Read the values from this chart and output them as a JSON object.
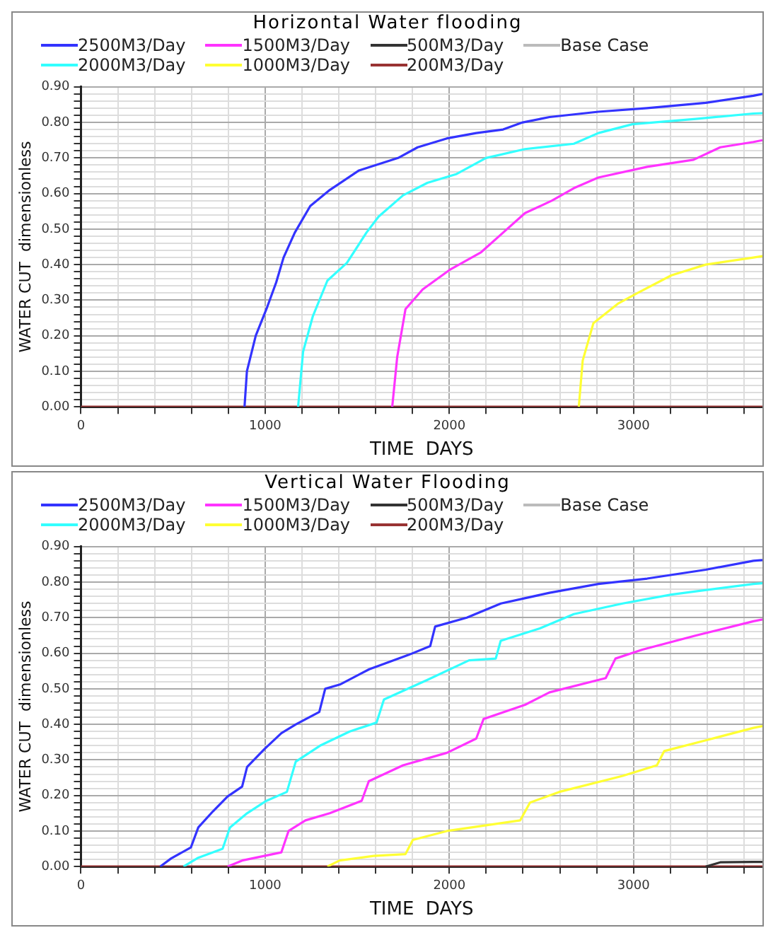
{
  "chart_data": [
    {
      "type": "line",
      "title": "Horizontal Water flooding",
      "xlabel": "TIME  DAYS",
      "ylabel": "WATER CUT  dimensionless",
      "legend": "top",
      "grid": true,
      "marker": "none",
      "xlim": [
        0,
        3700
      ],
      "ylim": [
        0,
        0.9
      ],
      "xticks": [
        0,
        {
          "value": 200,
          "label": null
        },
        {
          "value": 400,
          "label": null
        },
        {
          "value": 600,
          "label": null
        },
        {
          "value": 800,
          "label": null
        },
        1000,
        {
          "value": 1200,
          "label": null
        },
        {
          "value": 1400,
          "label": null
        },
        {
          "value": 1600,
          "label": null
        },
        {
          "value": 1800,
          "label": null
        },
        2000,
        {
          "value": 2200,
          "label": null
        },
        {
          "value": 2400,
          "label": null
        },
        {
          "value": 2600,
          "label": null
        },
        {
          "value": 2800,
          "label": null
        },
        3000,
        {
          "value": 3200,
          "label": null
        },
        {
          "value": 3400,
          "label": null
        },
        {
          "value": 3600,
          "label": null
        }
      ],
      "yticks": [
        {
          "value": 0,
          "label": "0.00"
        },
        {
          "value": 0.02,
          "label": null
        },
        {
          "value": 0.04,
          "label": null
        },
        {
          "value": 0.06,
          "label": null
        },
        {
          "value": 0.08,
          "label": null
        },
        {
          "value": 0.1,
          "label": "0.10"
        },
        {
          "value": 0.12,
          "label": null
        },
        {
          "value": 0.14,
          "label": null
        },
        {
          "value": 0.16,
          "label": null
        },
        {
          "value": 0.18,
          "label": null
        },
        {
          "value": 0.2,
          "label": "0.20"
        },
        {
          "value": 0.22,
          "label": null
        },
        {
          "value": 0.24,
          "label": null
        },
        {
          "value": 0.26,
          "label": null
        },
        {
          "value": 0.28,
          "label": null
        },
        {
          "value": 0.3,
          "label": "0.30"
        },
        {
          "value": 0.32,
          "label": null
        },
        {
          "value": 0.34,
          "label": null
        },
        {
          "value": 0.36,
          "label": null
        },
        {
          "value": 0.38,
          "label": null
        },
        {
          "value": 0.4,
          "label": "0.40"
        },
        {
          "value": 0.42,
          "label": null
        },
        {
          "value": 0.44,
          "label": null
        },
        {
          "value": 0.46,
          "label": null
        },
        {
          "value": 0.48,
          "label": null
        },
        {
          "value": 0.5,
          "label": "0.50"
        },
        {
          "value": 0.52,
          "label": null
        },
        {
          "value": 0.54,
          "label": null
        },
        {
          "value": 0.56,
          "label": null
        },
        {
          "value": 0.58,
          "label": null
        },
        {
          "value": 0.6,
          "label": "0.60"
        },
        {
          "value": 0.62,
          "label": null
        },
        {
          "value": 0.64,
          "label": null
        },
        {
          "value": 0.66,
          "label": null
        },
        {
          "value": 0.68,
          "label": null
        },
        {
          "value": 0.7,
          "label": "0.70"
        },
        {
          "value": 0.72,
          "label": null
        },
        {
          "value": 0.74,
          "label": null
        },
        {
          "value": 0.76,
          "label": null
        },
        {
          "value": 0.78,
          "label": null
        },
        {
          "value": 0.8,
          "label": "0.80"
        },
        {
          "value": 0.82,
          "label": null
        },
        {
          "value": 0.84,
          "label": null
        },
        {
          "value": 0.86,
          "label": null
        },
        {
          "value": 0.88,
          "label": null
        },
        {
          "value": 0.9,
          "label": "0.90"
        }
      ],
      "series": [
        {
          "name": "2500M3/Day",
          "color": "#3333ff",
          "x": [
            888,
            901,
            949,
            1007,
            1060,
            1100,
            1161,
            1245,
            1351,
            1510,
            1722,
            1828,
            1987,
            2146,
            2292,
            2398,
            2544,
            2809,
            3074,
            3392,
            3651,
            3700
          ],
          "values": [
            0,
            0.1,
            0.2,
            0.275,
            0.35,
            0.42,
            0.49,
            0.565,
            0.61,
            0.665,
            0.7,
            0.73,
            0.755,
            0.77,
            0.78,
            0.8,
            0.815,
            0.83,
            0.84,
            0.855,
            0.875,
            0.88
          ]
        },
        {
          "name": "2000M3/Day",
          "color": "#33ffff",
          "x": [
            1179,
            1206,
            1259,
            1338,
            1444,
            1550,
            1616,
            1749,
            1881,
            2040,
            2199,
            2411,
            2676,
            2809,
            2994,
            3339,
            3651,
            3700
          ],
          "values": [
            0,
            0.155,
            0.255,
            0.355,
            0.405,
            0.49,
            0.535,
            0.595,
            0.63,
            0.655,
            0.7,
            0.725,
            0.74,
            0.77,
            0.795,
            0.81,
            0.825,
            0.826
          ]
        },
        {
          "name": "1500M3/Day",
          "color": "#ff33ff",
          "x": [
            1690,
            1717,
            1762,
            1855,
            2001,
            2173,
            2292,
            2411,
            2557,
            2676,
            2809,
            3074,
            3326,
            3471,
            3651,
            3700
          ],
          "values": [
            0,
            0.14,
            0.275,
            0.33,
            0.385,
            0.435,
            0.49,
            0.545,
            0.58,
            0.615,
            0.645,
            0.675,
            0.695,
            0.73,
            0.745,
            0.75
          ]
        },
        {
          "name": "1000M3/Day",
          "color": "#ffff33",
          "x": [
            2703,
            2724,
            2782,
            2915,
            3021,
            3206,
            3392,
            3651,
            3700
          ],
          "values": [
            0,
            0.13,
            0.235,
            0.29,
            0.32,
            0.37,
            0.4,
            0.42,
            0.424
          ]
        },
        {
          "name": "500M3/Day",
          "color": "#333333"
        },
        {
          "name": "200M3/Day",
          "color": "#993333",
          "x": [
            0,
            3700
          ],
          "values": [
            0,
            0
          ]
        },
        {
          "name": "Base Case",
          "color": "#bbbbbb"
        }
      ]
    },
    {
      "type": "line",
      "title": "Vertical Water Flooding",
      "xlabel": "TIME  DAYS",
      "ylabel": "WATER CUT  dimensionless",
      "legend": "top",
      "grid": true,
      "marker": "none",
      "xlim": [
        0,
        3700
      ],
      "ylim": [
        0,
        0.9
      ],
      "xticks": [
        0,
        {
          "value": 200,
          "label": null
        },
        {
          "value": 400,
          "label": null
        },
        {
          "value": 600,
          "label": null
        },
        {
          "value": 800,
          "label": null
        },
        1000,
        {
          "value": 1200,
          "label": null
        },
        {
          "value": 1400,
          "label": null
        },
        {
          "value": 1600,
          "label": null
        },
        {
          "value": 1800,
          "label": null
        },
        2000,
        {
          "value": 2200,
          "label": null
        },
        {
          "value": 2400,
          "label": null
        },
        {
          "value": 2600,
          "label": null
        },
        {
          "value": 2800,
          "label": null
        },
        3000,
        {
          "value": 3200,
          "label": null
        },
        {
          "value": 3400,
          "label": null
        },
        {
          "value": 3600,
          "label": null
        }
      ],
      "yticks": [
        {
          "value": 0,
          "label": "0.00"
        },
        {
          "value": 0.02,
          "label": null
        },
        {
          "value": 0.04,
          "label": null
        },
        {
          "value": 0.06,
          "label": null
        },
        {
          "value": 0.08,
          "label": null
        },
        {
          "value": 0.1,
          "label": "0.10"
        },
        {
          "value": 0.12,
          "label": null
        },
        {
          "value": 0.14,
          "label": null
        },
        {
          "value": 0.16,
          "label": null
        },
        {
          "value": 0.18,
          "label": null
        },
        {
          "value": 0.2,
          "label": "0.20"
        },
        {
          "value": 0.22,
          "label": null
        },
        {
          "value": 0.24,
          "label": null
        },
        {
          "value": 0.26,
          "label": null
        },
        {
          "value": 0.28,
          "label": null
        },
        {
          "value": 0.3,
          "label": "0.30"
        },
        {
          "value": 0.32,
          "label": null
        },
        {
          "value": 0.34,
          "label": null
        },
        {
          "value": 0.36,
          "label": null
        },
        {
          "value": 0.38,
          "label": null
        },
        {
          "value": 0.4,
          "label": "0.40"
        },
        {
          "value": 0.42,
          "label": null
        },
        {
          "value": 0.44,
          "label": null
        },
        {
          "value": 0.46,
          "label": null
        },
        {
          "value": 0.48,
          "label": null
        },
        {
          "value": 0.5,
          "label": "0.50"
        },
        {
          "value": 0.52,
          "label": null
        },
        {
          "value": 0.54,
          "label": null
        },
        {
          "value": 0.56,
          "label": null
        },
        {
          "value": 0.58,
          "label": null
        },
        {
          "value": 0.6,
          "label": "0.60"
        },
        {
          "value": 0.62,
          "label": null
        },
        {
          "value": 0.64,
          "label": null
        },
        {
          "value": 0.66,
          "label": null
        },
        {
          "value": 0.68,
          "label": null
        },
        {
          "value": 0.7,
          "label": "0.70"
        },
        {
          "value": 0.72,
          "label": null
        },
        {
          "value": 0.74,
          "label": null
        },
        {
          "value": 0.76,
          "label": null
        },
        {
          "value": 0.78,
          "label": null
        },
        {
          "value": 0.8,
          "label": "0.80"
        },
        {
          "value": 0.82,
          "label": null
        },
        {
          "value": 0.84,
          "label": null
        },
        {
          "value": 0.86,
          "label": null
        },
        {
          "value": 0.88,
          "label": null
        },
        {
          "value": 0.9,
          "label": "0.90"
        }
      ],
      "series": [
        {
          "name": "2500M3/Day",
          "color": "#3333ff",
          "x": [
            430,
            490,
            597,
            637,
            716,
            796,
            875,
            902,
            995,
            1088,
            1167,
            1294,
            1326,
            1406,
            1565,
            1777,
            1896,
            1923,
            2095,
            2280,
            2544,
            2809,
            3074,
            3392,
            3651,
            3700
          ],
          "values": [
            0,
            0.023,
            0.054,
            0.11,
            0.155,
            0.197,
            0.225,
            0.28,
            0.33,
            0.375,
            0.4,
            0.435,
            0.5,
            0.512,
            0.555,
            0.595,
            0.62,
            0.675,
            0.7,
            0.74,
            0.77,
            0.795,
            0.81,
            0.835,
            0.86,
            0.862
          ]
        },
        {
          "name": "2000M3/Day",
          "color": "#33ffff",
          "x": [
            557,
            637,
            769,
            809,
            902,
            1007,
            1118,
            1166,
            1298,
            1459,
            1605,
            1645,
            1881,
            2107,
            2252,
            2279,
            2491,
            2676,
            2941,
            3206,
            3651,
            3700
          ],
          "values": [
            0,
            0.025,
            0.05,
            0.11,
            0.15,
            0.185,
            0.21,
            0.295,
            0.34,
            0.38,
            0.405,
            0.47,
            0.525,
            0.58,
            0.585,
            0.635,
            0.67,
            0.71,
            0.74,
            0.765,
            0.795,
            0.797
          ]
        },
        {
          "name": "1500M3/Day",
          "color": "#ff33ff",
          "x": [
            796,
            875,
            1088,
            1127,
            1219,
            1351,
            1524,
            1563,
            1749,
            1987,
            2146,
            2186,
            2411,
            2544,
            2849,
            2902,
            3048,
            3339,
            3651,
            3700
          ],
          "values": [
            0,
            0.017,
            0.04,
            0.1,
            0.13,
            0.15,
            0.185,
            0.24,
            0.285,
            0.32,
            0.36,
            0.415,
            0.455,
            0.49,
            0.53,
            0.585,
            0.61,
            0.65,
            0.69,
            0.695
          ]
        },
        {
          "name": "1000M3/Day",
          "color": "#ffff33",
          "x": [
            1338,
            1404,
            1590,
            1762,
            1802,
            1987,
            2385,
            2438,
            2597,
            2941,
            3127,
            3167,
            3392,
            3651,
            3700
          ],
          "values": [
            0,
            0.017,
            0.03,
            0.035,
            0.075,
            0.1,
            0.13,
            0.18,
            0.21,
            0.255,
            0.285,
            0.325,
            0.355,
            0.39,
            0.395
          ]
        },
        {
          "name": "500M3/Day",
          "color": "#333333",
          "x": [
            3392,
            3471,
            3651,
            3700
          ],
          "values": [
            0,
            0.012,
            0.013,
            0.013
          ]
        },
        {
          "name": "200M3/Day",
          "color": "#993333",
          "x": [
            0,
            3700
          ],
          "values": [
            0,
            0
          ]
        },
        {
          "name": "Base Case",
          "color": "#bbbbbb"
        }
      ]
    }
  ]
}
